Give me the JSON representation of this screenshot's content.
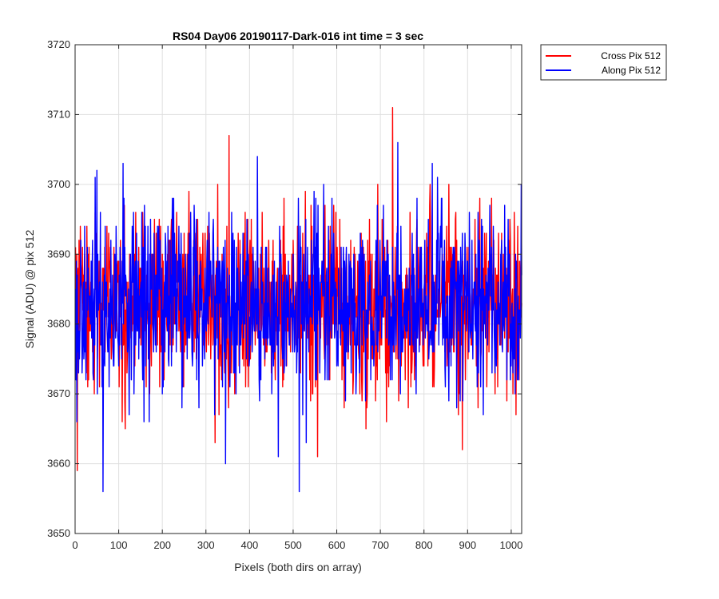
{
  "chart_data": {
    "type": "line",
    "title": "RS04 Day06 20190117-Dark-016 int time = 3 sec",
    "xlabel": "Pixels (both dirs on array)",
    "ylabel": "Signal (ADU) @ pix 512",
    "xlim": [
      0,
      1024
    ],
    "ylim": [
      3650,
      3720
    ],
    "xticks": [
      0,
      100,
      200,
      300,
      400,
      500,
      600,
      700,
      800,
      900,
      1000
    ],
    "yticks": [
      3650,
      3660,
      3670,
      3680,
      3690,
      3700,
      3710,
      3720
    ],
    "grid": true,
    "legend_position": "outside-top-right",
    "series": [
      {
        "name": "Cross Pix 512",
        "color": "#ff0000",
        "x_start": 1,
        "x_step": 1,
        "count": 1024,
        "mean": 3683,
        "min": 3659,
        "max": 3711,
        "notable_points": [
          {
            "x": 5,
            "y": 3659
          },
          {
            "x": 353,
            "y": 3707
          },
          {
            "x": 728,
            "y": 3711
          },
          {
            "x": 556,
            "y": 3661
          },
          {
            "x": 888,
            "y": 3662
          }
        ]
      },
      {
        "name": "Along Pix 512",
        "color": "#0000ff",
        "x_start": 1,
        "x_step": 1,
        "count": 1024,
        "mean": 3683,
        "min": 3656,
        "max": 3706,
        "notable_points": [
          {
            "x": 64,
            "y": 3656
          },
          {
            "x": 514,
            "y": 3656
          },
          {
            "x": 345,
            "y": 3660
          },
          {
            "x": 466,
            "y": 3661
          },
          {
            "x": 740,
            "y": 3706
          },
          {
            "x": 418,
            "y": 3704
          },
          {
            "x": 110,
            "y": 3703
          },
          {
            "x": 50,
            "y": 3702
          }
        ]
      }
    ]
  }
}
